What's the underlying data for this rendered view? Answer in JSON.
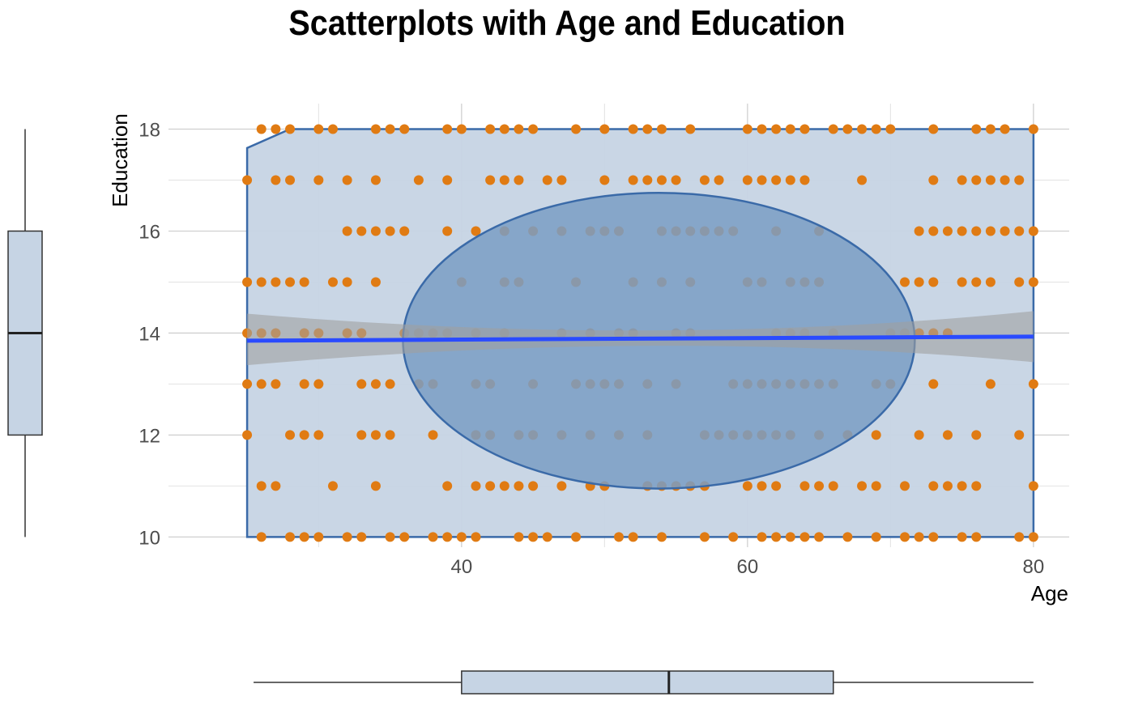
{
  "chart_data": {
    "type": "scatter",
    "title": "Scatterplots with Age and Education",
    "xlabel": "Age",
    "ylabel": "Education",
    "xlim": [
      19.5,
      82.5
    ],
    "ylim": [
      9.8,
      18.5
    ],
    "x_ticks": [
      "40",
      "60",
      "80"
    ],
    "y_ticks": [
      "10",
      "12",
      "14",
      "16",
      "18"
    ],
    "grid": true,
    "colors": {
      "points": "#e07b13",
      "hull_fill": "#c6d4e4",
      "hull_stroke": "#3a6aa8",
      "ellipse_fill": "#7a9dc4",
      "fit_line": "#2a4bff",
      "fit_band": "#a0a0a0"
    },
    "points": {
      "18": [
        26,
        27,
        28,
        30,
        31,
        34,
        35,
        36,
        39,
        40,
        42,
        43,
        44,
        45,
        48,
        50,
        52,
        53,
        54,
        56,
        60,
        61,
        62,
        63,
        64,
        66,
        67,
        68,
        69,
        70,
        73,
        76,
        77,
        78,
        80
      ],
      "17": [
        25,
        27,
        28,
        30,
        32,
        34,
        37,
        39,
        42,
        43,
        44,
        46,
        47,
        50,
        52,
        53,
        54,
        55,
        57,
        58,
        60,
        61,
        62,
        63,
        64,
        68,
        73,
        75,
        76,
        77,
        78,
        79
      ],
      "16": [
        32,
        33,
        34,
        35,
        36,
        39,
        41,
        43,
        45,
        47,
        49,
        50,
        51,
        54,
        55,
        56,
        57,
        58,
        59,
        62,
        65,
        72,
        73,
        74,
        75,
        76,
        77,
        78,
        79,
        80
      ],
      "15": [
        25,
        26,
        27,
        28,
        29,
        31,
        32,
        34,
        40,
        43,
        44,
        48,
        52,
        54,
        56,
        60,
        61,
        63,
        64,
        65,
        71,
        72,
        73,
        75,
        76,
        77,
        79,
        80
      ],
      "14": [
        25,
        26,
        27,
        29,
        30,
        32,
        33,
        36,
        37,
        38,
        39,
        41,
        43,
        47,
        49,
        51,
        52,
        55,
        56,
        62,
        63,
        64,
        66,
        70,
        71,
        72,
        73,
        74
      ],
      "13": [
        25,
        26,
        27,
        29,
        30,
        33,
        34,
        35,
        37,
        38,
        41,
        42,
        45,
        48,
        49,
        50,
        51,
        53,
        55,
        59,
        60,
        61,
        62,
        63,
        64,
        65,
        66,
        69,
        70,
        73,
        77,
        80
      ],
      "12": [
        25,
        28,
        29,
        30,
        33,
        34,
        35,
        38,
        41,
        42,
        44,
        45,
        47,
        49,
        51,
        53,
        57,
        58,
        59,
        60,
        61,
        62,
        63,
        65,
        67,
        69,
        72,
        74,
        76,
        79
      ],
      "11": [
        26,
        27,
        31,
        34,
        39,
        41,
        42,
        43,
        44,
        45,
        47,
        49,
        50,
        53,
        54,
        55,
        56,
        57,
        60,
        61,
        62,
        64,
        65,
        66,
        68,
        69,
        71,
        73,
        74,
        75,
        76,
        80
      ],
      "10": [
        26,
        28,
        29,
        30,
        32,
        33,
        35,
        36,
        38,
        39,
        40,
        41,
        44,
        45,
        46,
        48,
        51,
        52,
        54,
        57,
        59,
        61,
        62,
        63,
        64,
        65,
        67,
        69,
        71,
        72,
        73,
        75,
        76,
        79,
        80
      ]
    },
    "hull": [
      [
        25,
        10
      ],
      [
        80,
        10
      ],
      [
        80,
        18
      ],
      [
        28,
        18
      ],
      [
        25,
        17.63
      ]
    ],
    "ellipse": {
      "center_x": 53.8,
      "center_y": 13.85,
      "half_width_age": 17.9,
      "half_height_edu": 2.9
    },
    "fit_line": {
      "x": [
        25,
        80
      ],
      "y": [
        13.85,
        13.93
      ]
    },
    "fit_band": {
      "x": [
        25,
        54,
        80
      ],
      "upper": [
        14.38,
        14.05,
        14.43
      ],
      "lower": [
        13.37,
        13.75,
        13.43
      ]
    },
    "boxplot_age": {
      "min": 25,
      "q1": 40,
      "median": 54.5,
      "q3": 66,
      "max": 80
    },
    "boxplot_education": {
      "min": 10,
      "q1": 12,
      "median": 14,
      "q3": 16,
      "max": 18
    }
  }
}
